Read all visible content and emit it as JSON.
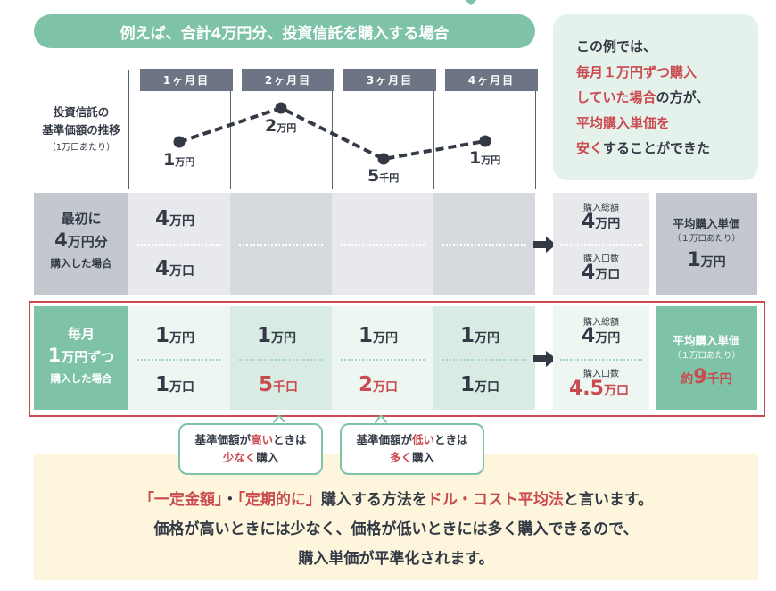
{
  "banner": "例えば、合計4万円分、投資信託を購入する場合",
  "chart_label": {
    "line1": "投資信託の",
    "line2": "基準価額の推移",
    "note": "（1万口あたり）"
  },
  "months": [
    "1ヶ月目",
    "2ヶ月目",
    "3ヶ月目",
    "4ヶ月目"
  ],
  "prices": [
    {
      "num": "1",
      "unit": "万円"
    },
    {
      "num": "2",
      "unit": "万円"
    },
    {
      "num": "5",
      "unit": "千円"
    },
    {
      "num": "1",
      "unit": "万円"
    }
  ],
  "info": {
    "line1": "この例では、",
    "line2": "毎月１万円ずつ購入",
    "line3a": "していた場合",
    "line3b": "の方が、",
    "line4": "平均購入単価を",
    "line5a": "安く",
    "line5b": "することができた"
  },
  "lump": {
    "label1": "最初に",
    "label2_num": "4",
    "label2_unit": "万円分",
    "label3": "購入した場合",
    "amount_num": "4",
    "amount_unit": "万円",
    "units_num": "4",
    "units_unit": "万口",
    "total_label": "購入総額",
    "total_num": "4",
    "total_unit": "万円",
    "count_label": "購入口数",
    "count_num": "4",
    "count_unit": "万口",
    "avg_title": "平均購入単価",
    "avg_note": "（１万口あたり）",
    "avg_num": "1",
    "avg_unit": "万円"
  },
  "monthly": {
    "label1": "毎月",
    "label2_num": "1",
    "label2_unit": "万円ずつ",
    "label3": "購入した場合",
    "amounts": [
      {
        "num": "1",
        "unit": "万円"
      },
      {
        "num": "1",
        "unit": "万円"
      },
      {
        "num": "1",
        "unit": "万円"
      },
      {
        "num": "1",
        "unit": "万円"
      }
    ],
    "units": [
      {
        "num": "1",
        "unit": "万口"
      },
      {
        "num": "5",
        "unit": "千口"
      },
      {
        "num": "2",
        "unit": "万口"
      },
      {
        "num": "1",
        "unit": "万口"
      }
    ],
    "total_label": "購入総額",
    "total_num": "4",
    "total_unit": "万円",
    "count_label": "購入口数",
    "count_num": "4.5",
    "count_unit": "万口",
    "avg_title": "平均購入単価",
    "avg_note": "（１万口あたり）",
    "avg_prefix": "約",
    "avg_num": "9",
    "avg_unit": "千円"
  },
  "callouts": [
    {
      "pre": "基準価額が",
      "hl": "高い",
      "post": "ときは",
      "hl2": "少なく",
      "post2": "購入"
    },
    {
      "pre": "基準価額が",
      "hl": "低い",
      "post": "ときは",
      "hl2": "多く",
      "post2": "購入"
    }
  ],
  "bottom": {
    "q1": "「一定金額」",
    "dot": "・",
    "q2": "「定期的に」",
    "mid": "購入する方法を",
    "method": "ドル・コスト平均法",
    "end": "と言います。",
    "line2": "価格が高いときには少なく、価格が低いときには多く購入できるので、",
    "line3": "購入単価が平準化されます。"
  },
  "colors": {
    "green": "#7ec3a8",
    "red": "#c94a4f",
    "dark": "#333a45",
    "gray": "#6d7585"
  }
}
